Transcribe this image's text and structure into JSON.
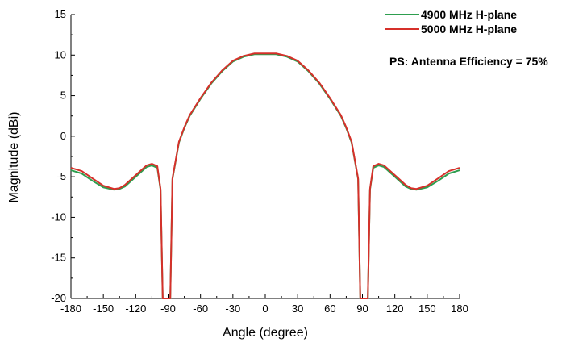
{
  "chart_data": {
    "type": "line",
    "xlabel": "Angle (degree)",
    "ylabel": "Magnitude (dBi)",
    "xlim": [
      -180,
      180
    ],
    "ylim": [
      -20,
      15
    ],
    "xticks": [
      -180,
      -150,
      -120,
      -90,
      -60,
      -30,
      0,
      30,
      60,
      90,
      120,
      150,
      180
    ],
    "yticks": [
      -20,
      -15,
      -10,
      -5,
      0,
      5,
      10,
      15
    ],
    "grid": false,
    "legend_position": "top-right",
    "annotation": "PS: Antenna Efficiency = 75%",
    "series": [
      {
        "name": "4900 MHz H-plane",
        "color": "#2e9e4f",
        "x": [
          -180,
          -170,
          -160,
          -150,
          -140,
          -135,
          -130,
          -120,
          -110,
          -105,
          -100,
          -97,
          -95,
          -93,
          -90,
          -88,
          -86,
          -80,
          -75,
          -70,
          -60,
          -50,
          -40,
          -30,
          -20,
          -10,
          0,
          10,
          20,
          30,
          40,
          50,
          60,
          70,
          75,
          80,
          86,
          88,
          90,
          93,
          95,
          97,
          100,
          105,
          110,
          120,
          130,
          135,
          140,
          150,
          160,
          170,
          180
        ],
        "y": [
          -4.2,
          -4.6,
          -5.5,
          -6.3,
          -6.6,
          -6.5,
          -6.2,
          -5.0,
          -3.8,
          -3.6,
          -3.9,
          -6.6,
          -20,
          -20,
          -20,
          -20,
          -5.3,
          -0.8,
          1.0,
          2.5,
          4.6,
          6.5,
          8.0,
          9.2,
          9.8,
          10.1,
          10.1,
          10.1,
          9.8,
          9.2,
          8.0,
          6.5,
          4.6,
          2.5,
          1.0,
          -0.8,
          -5.3,
          -20,
          -20,
          -20,
          -20,
          -6.6,
          -3.9,
          -3.6,
          -3.8,
          -5.0,
          -6.2,
          -6.5,
          -6.6,
          -6.3,
          -5.5,
          -4.6,
          -4.2
        ]
      },
      {
        "name": "5000 MHz H-plane",
        "color": "#d6302a",
        "x": [
          -180,
          -170,
          -160,
          -150,
          -140,
          -135,
          -130,
          -120,
          -110,
          -105,
          -100,
          -97,
          -95,
          -93,
          -90,
          -88,
          -86,
          -80,
          -75,
          -70,
          -60,
          -50,
          -40,
          -30,
          -20,
          -10,
          0,
          10,
          20,
          30,
          40,
          50,
          60,
          70,
          75,
          80,
          86,
          88,
          90,
          93,
          95,
          97,
          100,
          105,
          110,
          120,
          130,
          135,
          140,
          150,
          160,
          170,
          180
        ],
        "y": [
          -3.9,
          -4.3,
          -5.2,
          -6.1,
          -6.5,
          -6.4,
          -6.0,
          -4.8,
          -3.6,
          -3.4,
          -3.7,
          -6.5,
          -20,
          -20,
          -20,
          -20,
          -5.2,
          -0.7,
          1.1,
          2.6,
          4.7,
          6.6,
          8.1,
          9.3,
          9.9,
          10.2,
          10.2,
          10.2,
          9.9,
          9.3,
          8.1,
          6.6,
          4.7,
          2.6,
          1.1,
          -0.7,
          -5.2,
          -20,
          -20,
          -20,
          -20,
          -6.5,
          -3.7,
          -3.4,
          -3.6,
          -4.8,
          -6.0,
          -6.4,
          -6.5,
          -6.1,
          -5.2,
          -4.3,
          -3.9
        ]
      }
    ]
  }
}
